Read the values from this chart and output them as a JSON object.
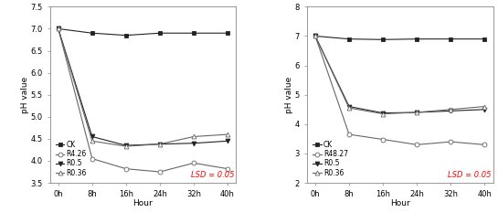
{
  "hours": [
    0,
    8,
    16,
    24,
    32,
    40
  ],
  "left": {
    "ylabel": "pH value",
    "xlabel": "Hour",
    "ylim": [
      3.5,
      7.5
    ],
    "yticks": [
      3.5,
      4.0,
      4.5,
      5.0,
      5.5,
      6.0,
      6.5,
      7.0,
      7.5
    ],
    "xtick_labels": [
      "0h",
      "8h",
      "16h",
      "24h",
      "32h",
      "40h"
    ],
    "series": {
      "CK": [
        7.0,
        6.9,
        6.85,
        6.9,
        6.9,
        6.9
      ],
      "R4.26": [
        7.0,
        4.05,
        3.82,
        3.75,
        3.95,
        3.82
      ],
      "R0.5": [
        7.0,
        4.55,
        4.35,
        4.38,
        4.4,
        4.45
      ],
      "R0.36": [
        7.0,
        4.45,
        4.33,
        4.38,
        4.55,
        4.6
      ]
    },
    "styles": {
      "CK": {
        "marker": "s",
        "ms": 3.5,
        "color": "#222222",
        "lw": 0.8,
        "mfc": "#222222",
        "mec": "#222222"
      },
      "R4.26": {
        "marker": "o",
        "ms": 3.5,
        "color": "#666666",
        "lw": 0.8,
        "mfc": "white",
        "mec": "#666666"
      },
      "R0.5": {
        "marker": "v",
        "ms": 3.5,
        "color": "#222222",
        "lw": 0.8,
        "mfc": "#222222",
        "mec": "#222222"
      },
      "R0.36": {
        "marker": "^",
        "ms": 3.5,
        "color": "#666666",
        "lw": 0.8,
        "mfc": "white",
        "mec": "#666666"
      }
    },
    "legend_labels": [
      "CK",
      "R4.26",
      "R0.5",
      "R0.36"
    ],
    "lsd_text": "LSD = 0.05",
    "lsd_color": "red"
  },
  "right": {
    "ylabel": "pH value",
    "xlabel": "Hour",
    "ylim": [
      2.0,
      8.0
    ],
    "yticks": [
      2.0,
      3.0,
      4.0,
      5.0,
      6.0,
      7.0,
      8.0
    ],
    "xtick_labels": [
      "0h",
      "8h",
      "16h",
      "24h",
      "32h",
      "40h"
    ],
    "series": {
      "CK": [
        7.0,
        6.9,
        6.88,
        6.9,
        6.9,
        6.9
      ],
      "R48.27": [
        7.0,
        3.65,
        3.48,
        3.3,
        3.4,
        3.3
      ],
      "R0.5": [
        7.0,
        4.6,
        4.38,
        4.4,
        4.45,
        4.5
      ],
      "R0.36": [
        7.0,
        4.55,
        4.35,
        4.4,
        4.5,
        4.6
      ]
    },
    "styles": {
      "CK": {
        "marker": "s",
        "ms": 3.5,
        "color": "#222222",
        "lw": 0.8,
        "mfc": "#222222",
        "mec": "#222222"
      },
      "R48.27": {
        "marker": "o",
        "ms": 3.5,
        "color": "#666666",
        "lw": 0.8,
        "mfc": "white",
        "mec": "#666666"
      },
      "R0.5": {
        "marker": "v",
        "ms": 3.5,
        "color": "#222222",
        "lw": 0.8,
        "mfc": "#222222",
        "mec": "#222222"
      },
      "R0.36": {
        "marker": "^",
        "ms": 3.5,
        "color": "#666666",
        "lw": 0.8,
        "mfc": "white",
        "mec": "#666666"
      }
    },
    "legend_labels": [
      "CK",
      "R48.27",
      "R0.5",
      "R0.36"
    ],
    "lsd_text": "LSD = 0.05",
    "lsd_color": "red"
  },
  "bg_color": "#ffffff",
  "font_size": 6.0,
  "label_fontsize": 6.5
}
